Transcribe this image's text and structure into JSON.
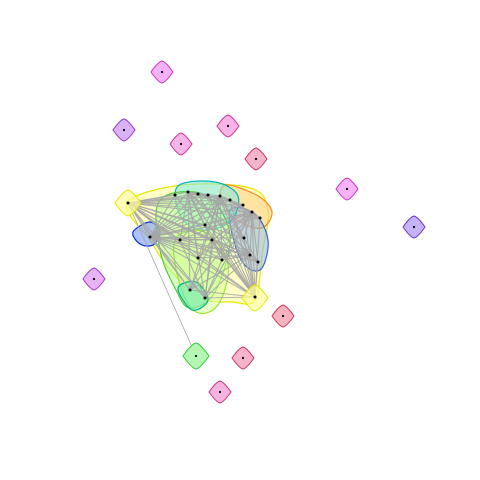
{
  "graph": {
    "background": "#ffffff",
    "edge_color": "#a6a6a6",
    "node_dot_color": "#000000",
    "isolated_nodes": [
      {
        "id": "n1",
        "fill": "#f5b3f5",
        "stroke": "#cc33cc"
      },
      {
        "id": "n2",
        "fill": "#d9b3f5",
        "stroke": "#9933cc"
      },
      {
        "id": "n3",
        "fill": "#f5b3e6",
        "stroke": "#cc3399"
      },
      {
        "id": "n4",
        "fill": "#f5b3e6",
        "stroke": "#cc3399"
      },
      {
        "id": "n5",
        "fill": "#f5b3cc",
        "stroke": "#cc3366"
      },
      {
        "id": "n6",
        "fill": "#f5b3f5",
        "stroke": "#cc33cc"
      },
      {
        "id": "n7",
        "fill": "#c6b3f5",
        "stroke": "#6633cc"
      },
      {
        "id": "n8",
        "fill": "#e6b3f5",
        "stroke": "#aa33cc"
      },
      {
        "id": "n9",
        "fill": "#f5b3c0",
        "stroke": "#cc3350"
      },
      {
        "id": "n10",
        "fill": "#f5b3cc",
        "stroke": "#cc3366"
      },
      {
        "id": "n11",
        "fill": "#f5b3e0",
        "stroke": "#cc3380"
      },
      {
        "id": "n12",
        "fill": "#b3f5b3",
        "stroke": "#33cc33"
      }
    ],
    "cluster_groups": [
      {
        "id": "g-yellow",
        "fill": "#ffff99",
        "stroke": "#e6e600"
      },
      {
        "id": "g-orange",
        "fill": "#ffcc80",
        "stroke": "#ff8c1a"
      },
      {
        "id": "g-blue",
        "fill": "#6a8cff",
        "stroke": "#0033cc"
      },
      {
        "id": "g-steelblue",
        "fill": "#8fb3e6",
        "stroke": "#3366cc"
      },
      {
        "id": "g-cyan",
        "fill": "#80e6e6",
        "stroke": "#00b3b3"
      },
      {
        "id": "g-green",
        "fill": "#b3ff99",
        "stroke": "#4dcc33"
      },
      {
        "id": "g-lime",
        "fill": "#d9ff99",
        "stroke": "#99e633"
      },
      {
        "id": "g-teal",
        "fill": "#66e6b3",
        "stroke": "#00b380"
      }
    ]
  }
}
